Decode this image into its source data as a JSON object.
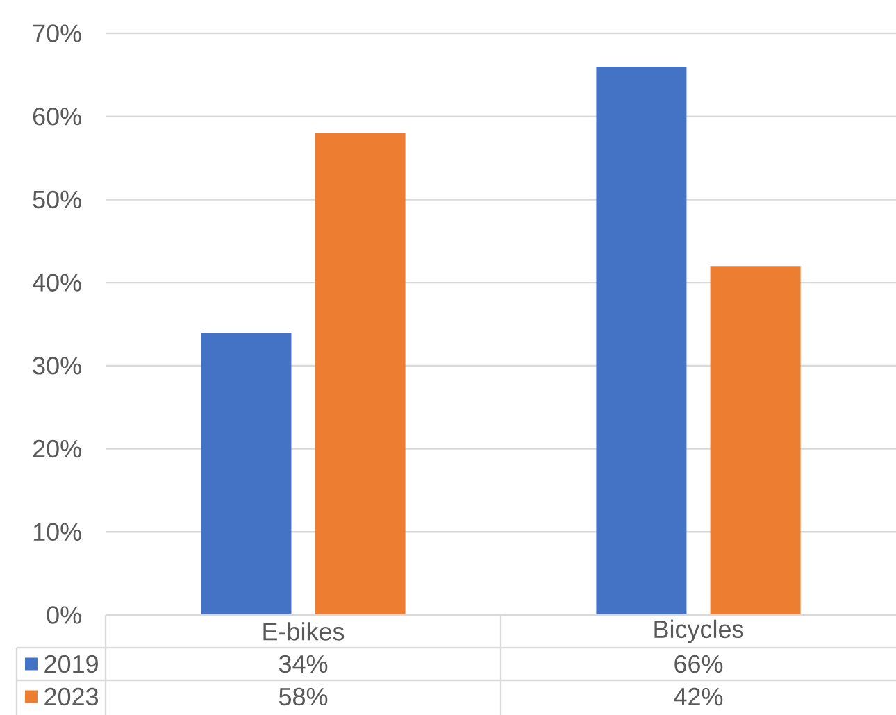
{
  "chart_data": {
    "type": "bar",
    "categories": [
      "E-bikes",
      "Bicycles"
    ],
    "series": [
      {
        "name": "2019",
        "color": "#4472c4",
        "values": [
          34,
          66
        ],
        "value_labels": [
          "34%",
          "66%"
        ]
      },
      {
        "name": "2023",
        "color": "#ed7d31",
        "values": [
          58,
          42
        ],
        "value_labels": [
          "58%",
          "42%"
        ]
      }
    ],
    "ylim": [
      0,
      70
    ],
    "yticks": [
      {
        "value": 0,
        "label": "0%"
      },
      {
        "value": 10,
        "label": "10%"
      },
      {
        "value": 20,
        "label": "20%"
      },
      {
        "value": 30,
        "label": "30%"
      },
      {
        "value": 40,
        "label": "40%"
      },
      {
        "value": 50,
        "label": "50%"
      },
      {
        "value": 60,
        "label": "60%"
      },
      {
        "value": 70,
        "label": "70%"
      }
    ],
    "grid": "y",
    "legend": "bottom"
  }
}
